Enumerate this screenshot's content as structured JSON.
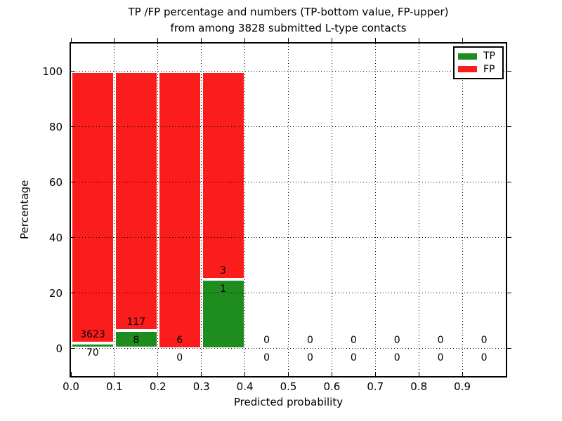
{
  "chart_data": {
    "type": "bar",
    "stacked": true,
    "title_line1": "TP /FP percentage and numbers (TP-bottom value, FP-upper)",
    "title_line2": "from among 3828 submitted L-type contacts",
    "xlabel": "Predicted probability",
    "ylabel": "Percentage",
    "xlim": [
      0.0,
      1.0
    ],
    "ylim": [
      -10,
      110
    ],
    "x_tick_values": [
      0.0,
      0.1,
      0.2,
      0.3,
      0.4,
      0.5,
      0.6,
      0.7,
      0.8,
      0.9
    ],
    "x_tick_labels": [
      "0.0",
      "0.1",
      "0.2",
      "0.3",
      "0.4",
      "0.5",
      "0.6",
      "0.7",
      "0.8",
      "0.9"
    ],
    "y_tick_values": [
      0,
      20,
      40,
      60,
      80,
      100
    ],
    "y_tick_labels": [
      "0",
      "20",
      "40",
      "60",
      "80",
      "100"
    ],
    "grid": true,
    "total_submitted": 3828,
    "legend": {
      "position": "upper right",
      "entries": [
        {
          "name": "TP",
          "color": "#1e8c1e"
        },
        {
          "name": "FP",
          "color": "#fb1c1c"
        }
      ]
    },
    "bins": [
      {
        "range": [
          0.0,
          0.1
        ],
        "tp": 70,
        "fp": 3623
      },
      {
        "range": [
          0.1,
          0.2
        ],
        "tp": 8,
        "fp": 117
      },
      {
        "range": [
          0.2,
          0.3
        ],
        "tp": 0,
        "fp": 6
      },
      {
        "range": [
          0.3,
          0.4
        ],
        "tp": 1,
        "fp": 3
      },
      {
        "range": [
          0.4,
          0.5
        ],
        "tp": 0,
        "fp": 0
      },
      {
        "range": [
          0.5,
          0.6
        ],
        "tp": 0,
        "fp": 0
      },
      {
        "range": [
          0.6,
          0.7
        ],
        "tp": 0,
        "fp": 0
      },
      {
        "range": [
          0.7,
          0.8
        ],
        "tp": 0,
        "fp": 0
      },
      {
        "range": [
          0.8,
          0.9
        ],
        "tp": 0,
        "fp": 0
      },
      {
        "range": [
          0.9,
          1.0
        ],
        "tp": 0,
        "fp": 0
      }
    ]
  }
}
